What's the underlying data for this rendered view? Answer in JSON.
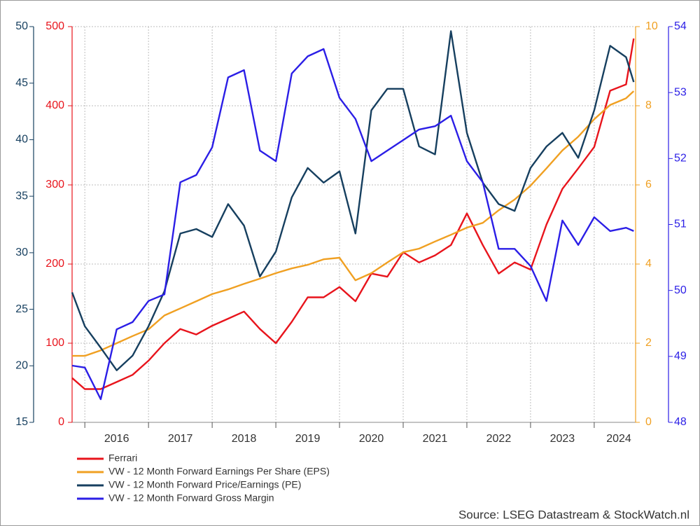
{
  "chart_data": {
    "type": "line",
    "source": "Source: LSEG Datastream & StockWatch.nl",
    "xlim": [
      2015.8,
      2024.65
    ],
    "xticks": [
      {
        "value": 2016,
        "label": "2016"
      },
      {
        "value": 2017,
        "label": "2017"
      },
      {
        "value": 2018,
        "label": "2018"
      },
      {
        "value": 2019,
        "label": "2019"
      },
      {
        "value": 2020,
        "label": "2020"
      },
      {
        "value": 2021,
        "label": "2021"
      },
      {
        "value": 2022,
        "label": "2022"
      },
      {
        "value": 2023,
        "label": "2023"
      },
      {
        "value": 2024,
        "label": "2024"
      }
    ],
    "grid": true,
    "yaxes": [
      {
        "lim": [
          15,
          50
        ],
        "ticks": [
          15,
          20,
          25,
          30,
          35,
          40,
          45,
          50
        ],
        "color": "#163f5f"
      },
      {
        "lim": [
          0,
          500
        ],
        "ticks": [
          0,
          100,
          200,
          300,
          400,
          500
        ],
        "color": "#e8141c"
      },
      {
        "lim": [
          0,
          10
        ],
        "ticks": [
          0,
          2,
          4,
          6,
          8,
          10
        ],
        "color": "#f0a022"
      },
      {
        "lim": [
          48,
          54
        ],
        "ticks": [
          48,
          49,
          50,
          51,
          52,
          53,
          54
        ],
        "color": "#2b1ee6"
      }
    ],
    "x": [
      2015.8,
      2016.0,
      2016.25,
      2016.5,
      2016.75,
      2017.0,
      2017.25,
      2017.5,
      2017.75,
      2018.0,
      2018.25,
      2018.5,
      2018.75,
      2019.0,
      2019.25,
      2019.5,
      2019.75,
      2020.0,
      2020.25,
      2020.5,
      2020.75,
      2021.0,
      2021.25,
      2021.5,
      2021.75,
      2022.0,
      2022.25,
      2022.5,
      2022.75,
      2023.0,
      2023.25,
      2023.5,
      2023.75,
      2024.0,
      2024.25,
      2024.5,
      2024.62
    ],
    "series": [
      {
        "name": "Ferrari",
        "color": "#e8141c",
        "axis": 1,
        "values": [
          56,
          42,
          42,
          51,
          60,
          78,
          100,
          118,
          111,
          122,
          131,
          140,
          118,
          100,
          127,
          158,
          158,
          171,
          153,
          188,
          184,
          215,
          202,
          211,
          224,
          264,
          224,
          188,
          202,
          193,
          250,
          295,
          321,
          348,
          419,
          427,
          485
        ]
      },
      {
        "name": "VW - 12 Month Forward Earnings Per Share (EPS)",
        "color": "#f0a022",
        "axis": 2,
        "values": [
          1.68,
          1.68,
          1.82,
          2.0,
          2.18,
          2.35,
          2.7,
          2.88,
          3.06,
          3.24,
          3.36,
          3.5,
          3.63,
          3.77,
          3.89,
          3.98,
          4.12,
          4.16,
          3.59,
          3.77,
          4.04,
          4.3,
          4.39,
          4.57,
          4.74,
          4.92,
          5.04,
          5.36,
          5.63,
          5.98,
          6.42,
          6.87,
          7.22,
          7.66,
          8.02,
          8.19,
          8.37
        ]
      },
      {
        "name": "VW - 12 Month Forward Price/Earnings (PE)",
        "color": "#163f5f",
        "axis": 0,
        "values": [
          26.5,
          23.5,
          21.6,
          19.6,
          20.9,
          23.5,
          26.6,
          31.7,
          32.1,
          31.4,
          34.3,
          32.4,
          27.9,
          30.1,
          34.9,
          37.5,
          36.2,
          37.2,
          31.7,
          42.6,
          44.5,
          44.5,
          39.4,
          38.7,
          49.6,
          40.6,
          36.2,
          34.3,
          33.7,
          37.5,
          39.4,
          40.6,
          38.4,
          42.6,
          48.3,
          47.3,
          45.1
        ]
      },
      {
        "name": "VW - 12 Month Forward Gross Margin",
        "color": "#2b1ee6",
        "axis": 3,
        "values": [
          48.86,
          48.83,
          48.35,
          49.41,
          49.52,
          49.84,
          49.94,
          51.64,
          51.75,
          52.17,
          53.23,
          53.34,
          52.12,
          51.96,
          53.29,
          53.55,
          53.66,
          52.92,
          52.6,
          51.96,
          52.12,
          52.28,
          52.44,
          52.49,
          52.65,
          51.96,
          51.64,
          50.63,
          50.63,
          50.37,
          49.84,
          51.06,
          50.69,
          51.11,
          50.9,
          50.95,
          50.9
        ]
      }
    ]
  }
}
